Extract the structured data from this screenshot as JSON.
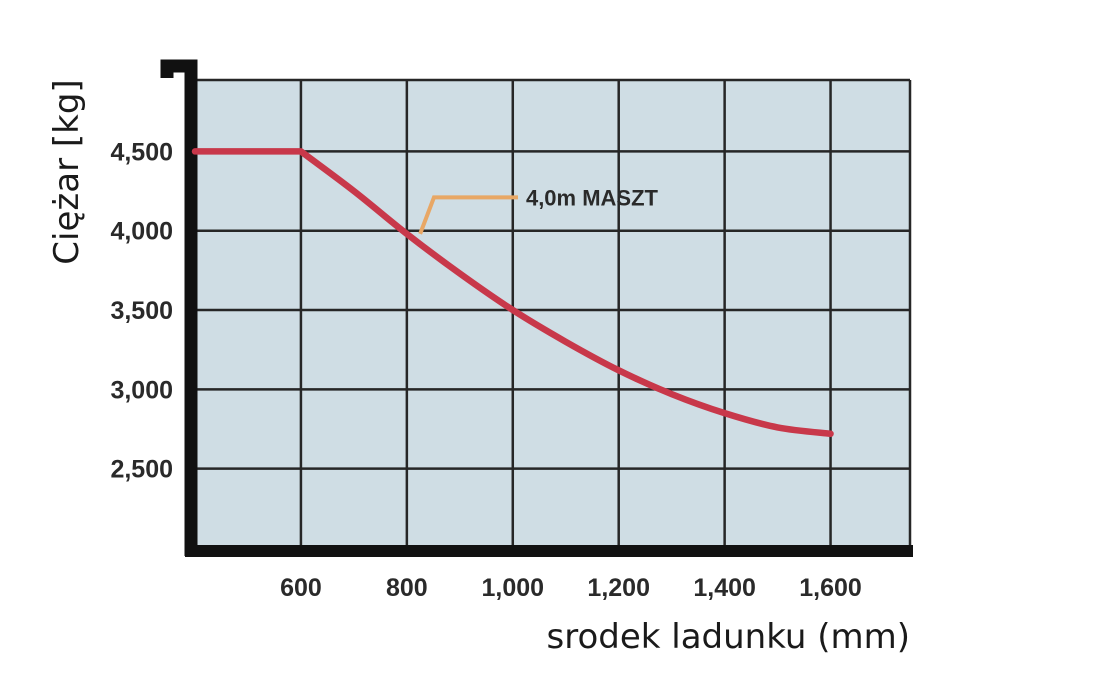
{
  "chart_data": {
    "type": "line",
    "title": "",
    "xlabel": "srodek ladunku (mm)",
    "ylabel": "Ciężar [kg]",
    "xlim": [
      400,
      1750
    ],
    "ylim": [
      2000,
      4950
    ],
    "x_ticks": [
      400,
      600,
      800,
      1000,
      1200,
      1400,
      1600,
      1750
    ],
    "x_tick_labels": [
      {
        "value": 600,
        "label": "600"
      },
      {
        "value": 800,
        "label": "800"
      },
      {
        "value": 1000,
        "label": "1,000"
      },
      {
        "value": 1200,
        "label": "1,200"
      },
      {
        "value": 1400,
        "label": "1,400"
      },
      {
        "value": 1600,
        "label": "1,600"
      }
    ],
    "y_ticks": [
      2500,
      3000,
      3500,
      4000,
      4500
    ],
    "y_tick_labels": [
      {
        "value": 2500,
        "label": "2,500"
      },
      {
        "value": 3000,
        "label": "3,000"
      },
      {
        "value": 3500,
        "label": "3,500"
      },
      {
        "value": 4000,
        "label": "4,000"
      },
      {
        "value": 4500,
        "label": "4,500"
      }
    ],
    "grid": true,
    "series": [
      {
        "x": [
          400,
          600,
          700,
          800,
          900,
          1000,
          1100,
          1200,
          1300,
          1400,
          1500,
          1600
        ],
        "y": [
          4500,
          4500,
          4250,
          3980,
          3730,
          3500,
          3300,
          3120,
          2970,
          2850,
          2760,
          2720
        ],
        "color": "#c8384a"
      }
    ],
    "annotations": [
      {
        "text": "4,0m MASZT",
        "point_x": 810,
        "point_y": 3980,
        "text_x": 1040,
        "text_y": 4210,
        "color": "#e8a765"
      }
    ],
    "colors": {
      "plot_background": "#cfdde4",
      "grid": "#262626",
      "axis": "#111111",
      "line": "#c8384a"
    }
  }
}
